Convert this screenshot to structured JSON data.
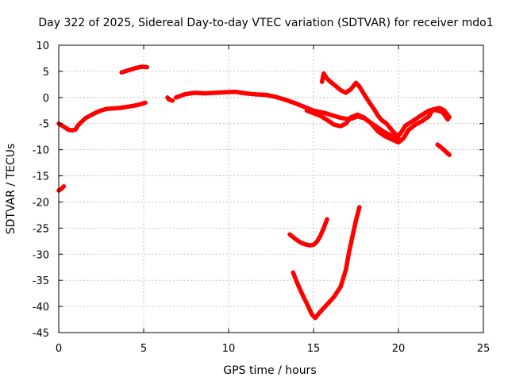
{
  "chart_data": {
    "type": "scatter",
    "title": "Day 322 of 2025, Sidereal Day-to-day VTEC variation (SDTVAR) for receiver mdo1",
    "xlabel": "GPS time / hours",
    "ylabel": "SDTVAR / TECUs",
    "xlim": [
      0,
      25
    ],
    "ylim": [
      -45,
      10
    ],
    "xticks": [
      0,
      5,
      10,
      15,
      20,
      25
    ],
    "yticks": [
      10,
      5,
      0,
      -5,
      -10,
      -15,
      -20,
      -25,
      -30,
      -35,
      -40,
      -45
    ],
    "xtick_labels": [
      "0",
      "5",
      "10",
      "15",
      "20",
      "25"
    ],
    "ytick_labels": [
      "10",
      "5",
      "0",
      "-5",
      "-10",
      "-15",
      "-20",
      "-25",
      "-30",
      "-35",
      "-40",
      "-45"
    ],
    "grid": true,
    "legend": "none",
    "color": "#ff0000",
    "series": [
      {
        "points": [
          [
            0.0,
            -17.8
          ],
          [
            0.15,
            -17.5
          ],
          [
            0.3,
            -17.0
          ]
        ]
      },
      {
        "points": [
          [
            0.0,
            -5.0
          ],
          [
            0.2,
            -5.4
          ],
          [
            0.4,
            -5.8
          ],
          [
            0.6,
            -6.2
          ],
          [
            0.8,
            -6.3
          ],
          [
            1.0,
            -6.1
          ],
          [
            1.1,
            -5.5
          ],
          [
            1.3,
            -4.8
          ],
          [
            1.6,
            -3.9
          ],
          [
            2.0,
            -3.2
          ],
          [
            2.4,
            -2.6
          ],
          [
            2.8,
            -2.2
          ],
          [
            3.2,
            -2.1
          ],
          [
            3.6,
            -2.0
          ],
          [
            4.0,
            -1.8
          ],
          [
            4.4,
            -1.6
          ],
          [
            4.8,
            -1.3
          ],
          [
            5.1,
            -1.0
          ]
        ]
      },
      {
        "points": [
          [
            3.7,
            4.8
          ],
          [
            4.0,
            5.1
          ],
          [
            4.3,
            5.4
          ],
          [
            4.6,
            5.7
          ],
          [
            4.9,
            5.9
          ],
          [
            5.2,
            5.8
          ]
        ]
      },
      {
        "points": [
          [
            6.4,
            0.0
          ],
          [
            6.5,
            -0.4
          ],
          [
            6.7,
            -0.6
          ]
        ]
      },
      {
        "points": [
          [
            6.9,
            0.0
          ],
          [
            7.4,
            0.6
          ],
          [
            8.0,
            0.9
          ],
          [
            8.6,
            0.8
          ],
          [
            9.2,
            0.9
          ],
          [
            9.8,
            1.0
          ],
          [
            10.4,
            1.1
          ],
          [
            11.0,
            0.8
          ],
          [
            11.6,
            0.6
          ],
          [
            12.2,
            0.5
          ],
          [
            12.8,
            0.1
          ],
          [
            13.4,
            -0.5
          ],
          [
            14.0,
            -1.2
          ],
          [
            14.6,
            -2.0
          ],
          [
            15.0,
            -2.5
          ],
          [
            15.4,
            -2.8
          ],
          [
            15.8,
            -3.1
          ],
          [
            16.2,
            -3.5
          ],
          [
            16.6,
            -3.9
          ],
          [
            17.0,
            -4.1
          ],
          [
            17.3,
            -4.0
          ],
          [
            17.6,
            -3.6
          ],
          [
            18.0,
            -4.0
          ],
          [
            18.4,
            -4.9
          ],
          [
            18.8,
            -5.8
          ],
          [
            19.2,
            -6.7
          ],
          [
            19.6,
            -7.3
          ],
          [
            20.0,
            -7.8
          ]
        ]
      },
      {
        "points": [
          [
            14.6,
            -2.5
          ],
          [
            15.0,
            -3.0
          ],
          [
            15.4,
            -3.5
          ],
          [
            15.8,
            -4.3
          ],
          [
            16.2,
            -5.2
          ],
          [
            16.6,
            -5.5
          ],
          [
            16.9,
            -5.0
          ],
          [
            17.2,
            -3.8
          ],
          [
            17.6,
            -3.3
          ],
          [
            18.0,
            -3.9
          ],
          [
            18.4,
            -5.0
          ],
          [
            18.8,
            -6.5
          ],
          [
            19.2,
            -7.4
          ],
          [
            19.6,
            -8.0
          ],
          [
            20.0,
            -8.6
          ],
          [
            20.3,
            -7.8
          ],
          [
            20.6,
            -6.2
          ],
          [
            21.0,
            -5.2
          ],
          [
            21.4,
            -4.5
          ],
          [
            21.8,
            -3.6
          ],
          [
            22.0,
            -2.3
          ],
          [
            22.4,
            -2.0
          ],
          [
            22.7,
            -2.5
          ],
          [
            23.0,
            -3.8
          ]
        ]
      },
      {
        "points": [
          [
            15.5,
            3.0
          ],
          [
            15.6,
            4.6
          ],
          [
            15.8,
            3.6
          ],
          [
            16.0,
            3.0
          ],
          [
            16.3,
            2.2
          ],
          [
            16.6,
            1.4
          ],
          [
            16.9,
            0.9
          ],
          [
            17.2,
            1.6
          ],
          [
            17.5,
            2.8
          ],
          [
            17.7,
            2.1
          ],
          [
            18.0,
            0.5
          ],
          [
            18.3,
            -1.0
          ],
          [
            18.6,
            -2.4
          ],
          [
            18.8,
            -3.5
          ],
          [
            19.0,
            -4.3
          ],
          [
            19.3,
            -5.0
          ],
          [
            19.6,
            -6.2
          ],
          [
            19.9,
            -7.3
          ],
          [
            20.1,
            -7.0
          ],
          [
            20.4,
            -5.4
          ],
          [
            20.8,
            -4.6
          ],
          [
            21.3,
            -3.5
          ],
          [
            21.8,
            -2.5
          ],
          [
            22.2,
            -2.4
          ],
          [
            22.6,
            -2.8
          ],
          [
            22.9,
            -4.2
          ]
        ]
      },
      {
        "points": [
          [
            22.3,
            -9.0
          ],
          [
            22.6,
            -9.8
          ],
          [
            23.0,
            -11.0
          ]
        ]
      },
      {
        "points": [
          [
            13.6,
            -26.2
          ],
          [
            13.9,
            -27.0
          ],
          [
            14.2,
            -27.7
          ],
          [
            14.5,
            -28.1
          ],
          [
            14.8,
            -28.3
          ],
          [
            15.0,
            -28.2
          ],
          [
            15.2,
            -27.6
          ],
          [
            15.4,
            -26.5
          ],
          [
            15.6,
            -25.0
          ],
          [
            15.8,
            -23.3
          ]
        ]
      },
      {
        "points": [
          [
            13.8,
            -33.5
          ],
          [
            14.0,
            -35.2
          ],
          [
            14.3,
            -37.4
          ],
          [
            14.6,
            -39.4
          ],
          [
            14.9,
            -41.5
          ],
          [
            15.1,
            -42.2
          ],
          [
            15.4,
            -41.0
          ],
          [
            15.8,
            -39.6
          ],
          [
            16.2,
            -38.2
          ],
          [
            16.6,
            -36.2
          ],
          [
            16.9,
            -33.0
          ],
          [
            17.1,
            -29.5
          ],
          [
            17.3,
            -26.5
          ],
          [
            17.5,
            -23.5
          ],
          [
            17.7,
            -21.0
          ]
        ]
      }
    ]
  }
}
